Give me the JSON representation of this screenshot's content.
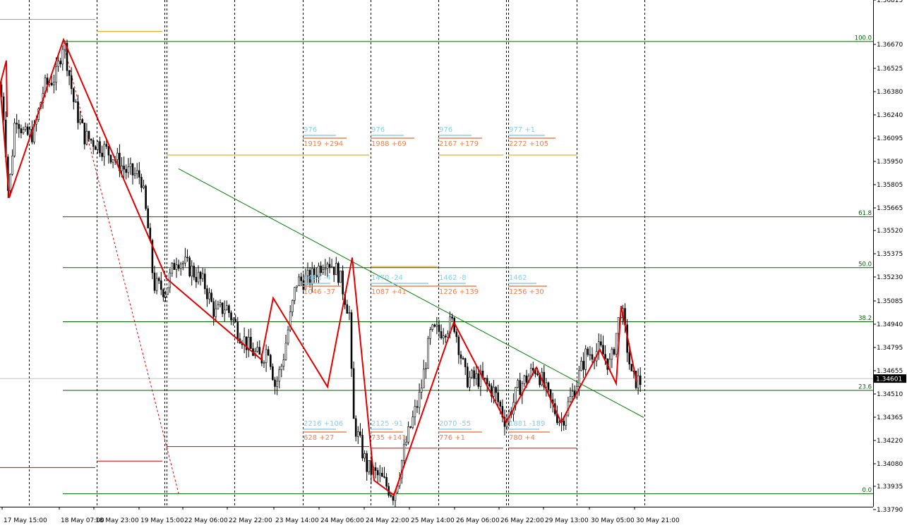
{
  "chart_data": {
    "type": "candlestick",
    "instrument_price_current": "1.34601",
    "y_axis": {
      "ylim": [
        1.3378,
        1.3692
      ],
      "ticks": [
        "1.36815",
        "1.36670",
        "1.36525",
        "1.36380",
        "1.36240",
        "1.36095",
        "1.35950",
        "1.35805",
        "1.35665",
        "1.35520",
        "1.35375",
        "1.35230",
        "1.35085",
        "1.34940",
        "1.34795",
        "1.34655",
        "1.34510",
        "1.34365",
        "1.34220",
        "1.34080",
        "1.33935",
        "1.33790"
      ]
    },
    "x_axis": {
      "tick_labels": [
        "17 May 15:00",
        "18 May 07:00",
        "18 May 23:00",
        "19 May 15:00",
        "22 May 06:00",
        "22 May 22:00",
        "23 May 14:00",
        "24 May 06:00",
        "24 May 22:00",
        "25 May 14:00",
        "26 May 06:00",
        "26 May 22:00",
        "29 May 13:00",
        "30 May 05:00",
        "30 May 21:00"
      ]
    },
    "fibonacci_levels": [
      {
        "label": "100.0",
        "price": 1.3669
      },
      {
        "label": "61.8",
        "price": 1.35605
      },
      {
        "label": "50.0",
        "price": 1.3529
      },
      {
        "label": "38.2",
        "price": 1.34955
      },
      {
        "label": "23.6",
        "price": 1.3453
      },
      {
        "label": "0.0",
        "price": 1.3389
      }
    ],
    "zigzag_prices": [
      1.3642,
      1.3572,
      1.367,
      1.3522,
      1.3472,
      1.351,
      1.3455,
      1.3535,
      1.3397,
      1.3388,
      1.3495,
      1.3433,
      1.3467,
      1.3433,
      1.3478,
      1.3457,
      1.3505,
      1.3458
    ],
    "trendline_prices": [
      1.359,
      1.3436
    ],
    "session_boxes": [
      {
        "top": "976",
        "bottom": "1919 +294"
      },
      {
        "top": "976",
        "bottom": "1988 +69"
      },
      {
        "top": "976",
        "bottom": "2167 +179"
      },
      {
        "top": "977 +1",
        "bottom": "2272 +105"
      },
      {
        "top": "1483 -4",
        "bottom": "1046 -37"
      },
      {
        "top": "1470 -24",
        "bottom": "1087 +41"
      },
      {
        "top": "1462 -8",
        "bottom": "1226 +139"
      },
      {
        "top": "1462",
        "bottom": "1256 +30"
      },
      {
        "top": "2216 +106",
        "bottom": "628 +27"
      },
      {
        "top": "2125 -91",
        "bottom": "735 +141"
      },
      {
        "top": "2070 -55",
        "bottom": "776 +1"
      },
      {
        "top": "1881 -189",
        "bottom": "780 +4"
      }
    ],
    "colors": {
      "candles": "#000000",
      "zigzag": "#e00000",
      "fib": "#006400",
      "trendline": "#008000",
      "orange_levels": "#e0a000",
      "red_levels": "#d00000",
      "session_top_text": "#87ceeb",
      "session_bottom_text": "#f08050",
      "price_box": "#000000"
    }
  }
}
